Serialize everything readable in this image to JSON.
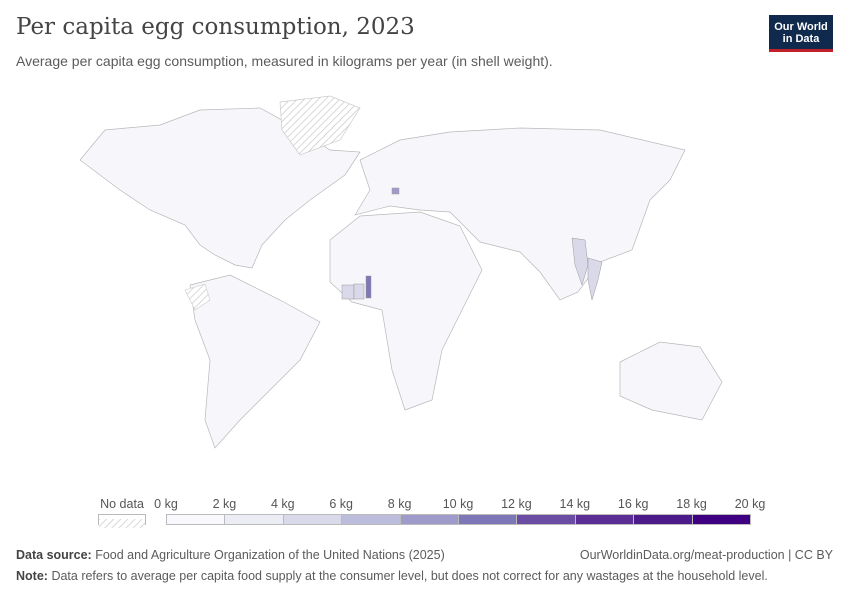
{
  "title": "Per capita egg consumption, 2023",
  "subtitle": "Average per capita egg consumption, measured in kilograms per year (in shell weight).",
  "logo": {
    "line1": "Our World",
    "line2": "in Data"
  },
  "legend": {
    "no_data": "No data",
    "labels": [
      "0 kg",
      "2 kg",
      "4 kg",
      "6 kg",
      "8 kg",
      "10 kg",
      "12 kg",
      "14 kg",
      "16 kg",
      "18 kg",
      "20 kg"
    ],
    "colors": [
      "#f9f9fd",
      "#ececf5",
      "#d9d9ea",
      "#bcbcdc",
      "#9e9aca",
      "#7d77b7",
      "#6a4da2",
      "#5a2e95",
      "#4d1a8a",
      "#3e0080"
    ]
  },
  "footer": {
    "source_label": "Data source:",
    "source": "Food and Agriculture Organization of the United Nations (2025)",
    "url": "OurWorldinData.org/meat-production | CC BY",
    "note_label": "Note:",
    "note": "Data refers to average per capita food supply at the consumer level, but does not correct for any wastages at the household level."
  }
}
